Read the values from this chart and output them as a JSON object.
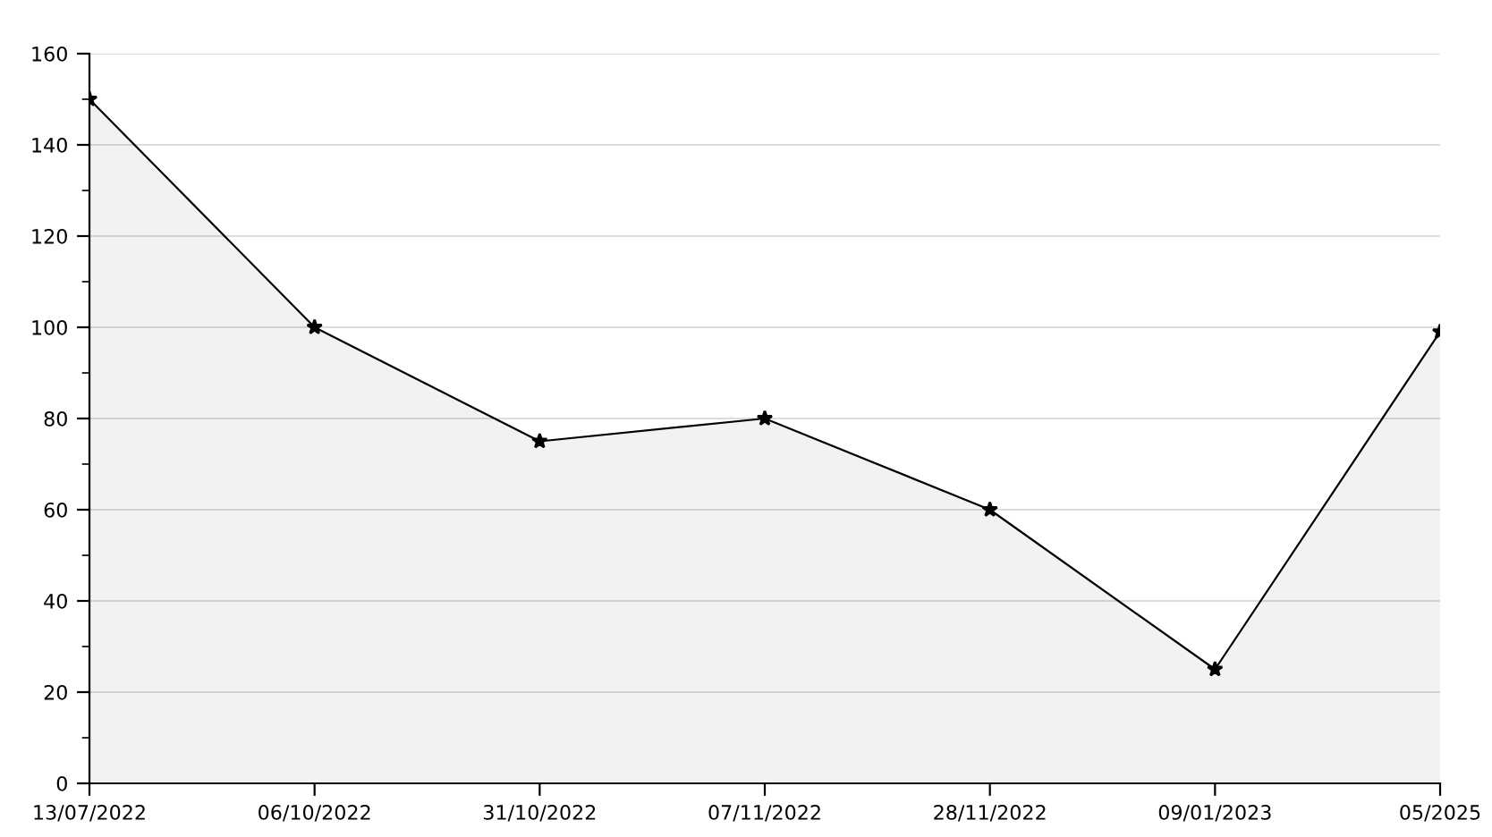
{
  "chart_data": {
    "type": "area",
    "categories": [
      "13/07/2022",
      "06/10/2022",
      "31/10/2022",
      "07/11/2022",
      "28/11/2022",
      "09/01/2023",
      "05/2025"
    ],
    "series": [
      {
        "color": "#000000",
        "values": [
          150,
          100,
          75,
          80,
          60,
          25,
          99
        ]
      }
    ],
    "ylim": [
      0,
      160
    ],
    "yticks": [
      0,
      {
        "value": 10,
        "label": null
      },
      20,
      {
        "value": 30,
        "label": null
      },
      40,
      {
        "value": 50,
        "label": null
      },
      60,
      {
        "value": 70,
        "label": null
      },
      80,
      {
        "value": 90,
        "label": null
      },
      100,
      {
        "value": 110,
        "label": null
      },
      120,
      {
        "value": 130,
        "label": null
      },
      140,
      {
        "value": 150,
        "label": null
      },
      160
    ],
    "grid": "y",
    "marker": "star",
    "line_style": "solid"
  }
}
